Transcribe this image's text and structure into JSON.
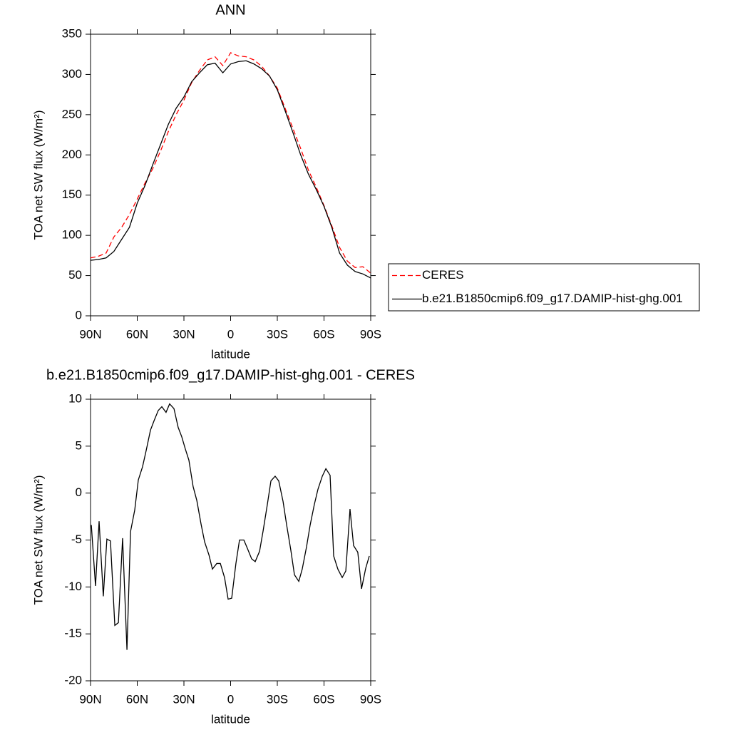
{
  "chart_data": [
    {
      "type": "line",
      "title": "ANN",
      "xlabel": "latitude",
      "ylabel": "TOA net SW flux (W/m²)",
      "x": [
        90,
        85,
        80,
        75,
        70,
        65,
        60,
        55,
        50,
        45,
        40,
        35,
        30,
        25,
        20,
        15,
        10,
        5,
        0,
        -5,
        -10,
        -15,
        -20,
        -25,
        -30,
        -35,
        -40,
        -45,
        -50,
        -55,
        -60,
        -65,
        -70,
        -75,
        -80,
        -85,
        -90
      ],
      "series": [
        {
          "name": "CERES",
          "color": "#ff0000",
          "dashed": true,
          "values": [
            72,
            74,
            78,
            98,
            110,
            126,
            145,
            165,
            183,
            205,
            229,
            250,
            268,
            290,
            305,
            318,
            322,
            311,
            327,
            323,
            322,
            318,
            310,
            298,
            283,
            258,
            233,
            208,
            181,
            160,
            137,
            112,
            85,
            68,
            60,
            61,
            53
          ]
        },
        {
          "name": "b.e21.B1850cmip6.f09_g17.DAMIP-hist-ghg.001",
          "color": "#000000",
          "dashed": false,
          "values": [
            69,
            70,
            72,
            80,
            95,
            110,
            140,
            162,
            188,
            213,
            238,
            258,
            272,
            291,
            302,
            312,
            314,
            302,
            313,
            316,
            317,
            313,
            307,
            298,
            281,
            255,
            228,
            200,
            176,
            157,
            136,
            110,
            78,
            63,
            55,
            52,
            47
          ]
        }
      ],
      "xlim": [
        90,
        -90
      ],
      "xticks": [
        {
          "value": 90,
          "label": "90N"
        },
        {
          "value": 60,
          "label": "60N"
        },
        {
          "value": 30,
          "label": "30N"
        },
        0,
        {
          "value": -30,
          "label": "30S"
        },
        {
          "value": -60,
          "label": "60S"
        },
        {
          "value": -90,
          "label": "90S"
        }
      ],
      "ylim": [
        0,
        350
      ],
      "yticks": [
        0,
        50,
        100,
        150,
        200,
        250,
        300,
        350
      ],
      "legend": "outside-right"
    },
    {
      "type": "line",
      "title": "b.e21.B1850cmip6.f09_g17.DAMIP-hist-ghg.001 - CERES",
      "xlabel": "latitude",
      "ylabel": "TOA net SW flux (W/m²)",
      "x": [
        89.5,
        86.8,
        84.5,
        81.8,
        79.5,
        77.2,
        74.4,
        72.1,
        69.4,
        66.6,
        64.3,
        61.6,
        59.3,
        56.6,
        54.3,
        51.5,
        49.2,
        46.5,
        44.2,
        41.5,
        39.2,
        36.4,
        33.7,
        31.4,
        29.1,
        26.8,
        24.1,
        21.7,
        19.0,
        16.7,
        13.9,
        11.7,
        8.9,
        6.6,
        3.9,
        1.6,
        -0.7,
        -3.4,
        -5.7,
        -8.5,
        -10.8,
        -13.5,
        -15.8,
        -18.6,
        -20.9,
        -23.6,
        -25.9,
        -28.6,
        -30.9,
        -33.7,
        -36.0,
        -38.7,
        -41.0,
        -43.8,
        -46.0,
        -48.8,
        -51.1,
        -53.8,
        -56.1,
        -58.9,
        -61.2,
        -63.9,
        -66.2,
        -68.9,
        -71.7,
        -74.0,
        -76.7,
        -79.0,
        -81.7,
        -84.1,
        -86.8,
        -89.1
      ],
      "series": [
        {
          "name": null,
          "color": "#000000",
          "dashed": false,
          "values": [
            -3.4,
            -9.9,
            -3.0,
            -11.0,
            -4.9,
            -5.1,
            -14.1,
            -13.8,
            -4.8,
            -16.7,
            -4.1,
            -1.8,
            1.4,
            2.8,
            4.5,
            6.7,
            7.7,
            8.8,
            9.2,
            8.6,
            9.5,
            9.0,
            7.0,
            6.0,
            4.7,
            3.5,
            0.7,
            -0.8,
            -3.3,
            -5.2,
            -6.6,
            -8.1,
            -7.5,
            -7.5,
            -9.0,
            -11.3,
            -11.2,
            -7.5,
            -5.0,
            -5.0,
            -5.9,
            -7.0,
            -7.3,
            -6.2,
            -4.0,
            -1.2,
            1.3,
            1.8,
            1.3,
            -0.9,
            -3.4,
            -6.1,
            -8.7,
            -9.4,
            -8.1,
            -5.7,
            -3.4,
            -1.2,
            0.4,
            1.8,
            2.6,
            1.9,
            -6.7,
            -8.1,
            -9.0,
            -8.3,
            -1.7,
            -5.6,
            -6.3,
            -10.2,
            -8.0,
            -6.7
          ]
        }
      ],
      "xlim": [
        90,
        -90
      ],
      "xticks": [
        {
          "value": 90,
          "label": "90N"
        },
        {
          "value": 60,
          "label": "60N"
        },
        {
          "value": 30,
          "label": "30N"
        },
        0,
        {
          "value": -30,
          "label": "30S"
        },
        {
          "value": -60,
          "label": "60S"
        },
        {
          "value": -90,
          "label": "90S"
        }
      ],
      "ylim": [
        -20,
        10
      ],
      "yticks": [
        -20,
        -15,
        -10,
        -5,
        0,
        5,
        10
      ]
    }
  ]
}
